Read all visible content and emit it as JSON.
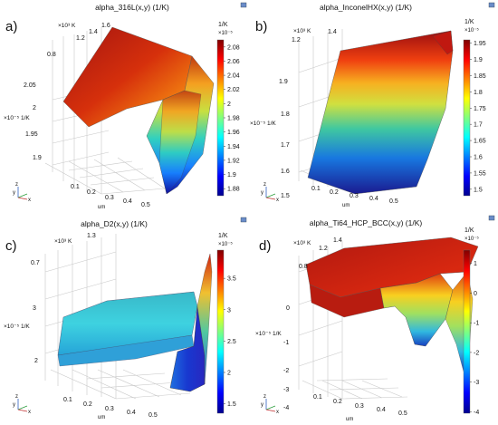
{
  "chart_data": [
    {
      "type": "surface",
      "panel_label": "a)",
      "title": "alpha_316L(x,y) (1/K)",
      "colorbar": {
        "unit": "1/K",
        "exponent": "×10⁻⁵",
        "ticks": [
          "2.08",
          "2.06",
          "2.04",
          "2.02",
          "2",
          "1.98",
          "1.96",
          "1.94",
          "1.92",
          "1.9",
          "1.88"
        ],
        "range": [
          1.87,
          2.09
        ]
      },
      "y_axis": {
        "exponent": "×10³ K",
        "ticks": [
          "0.8",
          "1.2",
          "1.4",
          "1.6"
        ]
      },
      "z_axis": {
        "exponent": "×10⁻⁵ 1/K",
        "ticks": [
          "2.05",
          "2",
          "1.95",
          "1.9"
        ]
      },
      "x_axis": {
        "label": "um",
        "ticks": [
          "0.1",
          "0.2",
          "0.3",
          "0.4",
          "0.5"
        ]
      }
    },
    {
      "type": "surface",
      "panel_label": "b)",
      "title": "alpha_InconelHX(x,y) (1/K)",
      "colorbar": {
        "unit": "1/K",
        "exponent": "×10⁻⁵",
        "ticks": [
          "1.95",
          "1.9",
          "1.85",
          "1.8",
          "1.75",
          "1.7",
          "1.65",
          "1.6",
          "1.55",
          "1.5"
        ],
        "range": [
          1.48,
          1.96
        ]
      },
      "y_axis": {
        "exponent": "×10³ K",
        "ticks": [
          "1.2",
          "1.4"
        ]
      },
      "z_axis": {
        "exponent": "×10⁻⁵ 1/K",
        "ticks": [
          "1.9",
          "1.8",
          "1.7",
          "1.6",
          "1.5"
        ]
      },
      "x_axis": {
        "label": "um",
        "ticks": [
          "0.1",
          "0.2",
          "0.3",
          "0.4",
          "0.5"
        ]
      }
    },
    {
      "type": "surface",
      "panel_label": "c)",
      "title": "alpha_D2(x,y) (1/K)",
      "colorbar": {
        "unit": "1/K",
        "exponent": "×10⁻⁵",
        "ticks": [
          "3.5",
          "3",
          "2.5",
          "2",
          "1.5"
        ],
        "range": [
          1.35,
          3.95
        ]
      },
      "y_axis": {
        "exponent": "×10³ K",
        "ticks": [
          "0.7",
          "1.3"
        ]
      },
      "z_axis": {
        "exponent": "×10⁻⁵ 1/K",
        "ticks": [
          "3",
          "2"
        ]
      },
      "x_axis": {
        "label": "um",
        "ticks": [
          "0.1",
          "0.2",
          "0.3",
          "0.4",
          "0.5"
        ]
      }
    },
    {
      "type": "surface",
      "panel_label": "d)",
      "title": "alpha_Ti64_HCP_BCC(x,y) (1/K)",
      "colorbar": {
        "unit": "1/K",
        "exponent": "×10⁻⁵",
        "ticks": [
          "1",
          "0",
          "-1",
          "-2",
          "-3",
          "-4"
        ],
        "range": [
          -4.05,
          1.45
        ]
      },
      "y_axis": {
        "exponent": "×10³ K",
        "ticks": [
          "0.8",
          "1.2",
          "1.4"
        ]
      },
      "z_axis": {
        "exponent": "×10⁻⁵ 1/K",
        "ticks": [
          "0",
          "-1",
          "-2",
          "-3",
          "-4"
        ]
      },
      "x_axis": {
        "label": "um",
        "ticks": [
          "0.1",
          "0.2",
          "0.3",
          "0.4",
          "0.5"
        ]
      }
    }
  ],
  "triad": {
    "z": "z",
    "y": "y",
    "x": "x"
  },
  "colors": {
    "jet": [
      "#00008f",
      "#0000ff",
      "#007fff",
      "#00ffff",
      "#7fff7f",
      "#ffff00",
      "#ff7f00",
      "#ff0000",
      "#7f0000"
    ],
    "grid": "#c8c8c8",
    "surface_edge": "#333333"
  }
}
